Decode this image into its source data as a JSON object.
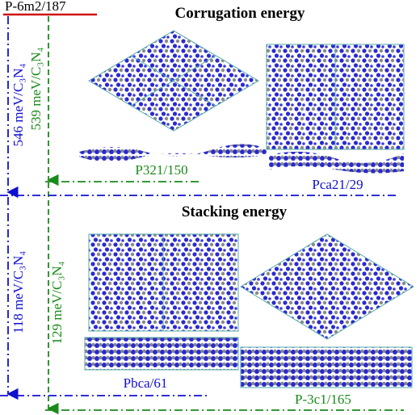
{
  "header": {
    "reference": "P-6m2/187"
  },
  "sections": [
    {
      "title": "Corrugation energy",
      "energies": [
        "546 meV/C₃N₄",
        "539 meV/C₃N₄"
      ],
      "structures": [
        "P321/150",
        "Pca21/29"
      ]
    },
    {
      "title": "Stacking energy",
      "energies": [
        "118 meV/C₃N₄",
        "129 meV/C₃N₄"
      ],
      "structures": [
        "Pbca/61",
        "P-3c1/165"
      ]
    }
  ]
}
